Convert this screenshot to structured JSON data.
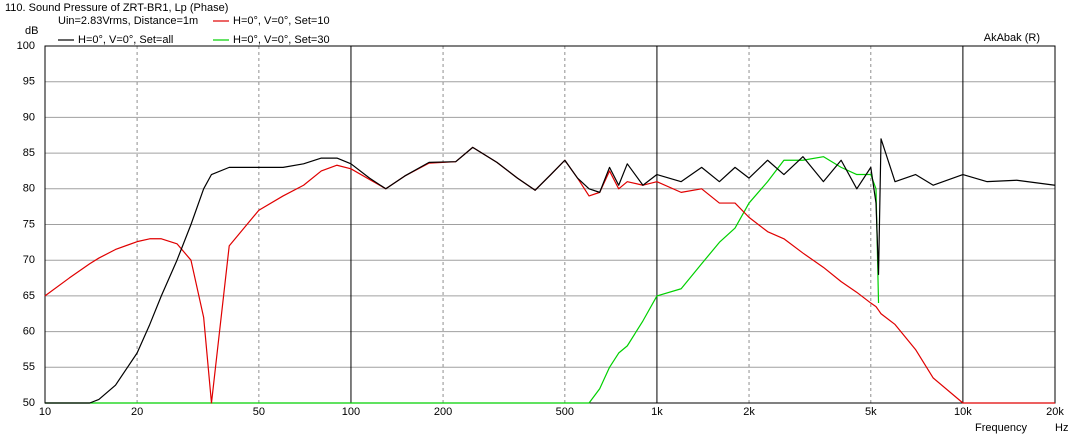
{
  "chart_data": {
    "type": "line",
    "title": "110. Sound Pressure of ZRT-BR1, Lp (Phase)",
    "subtitle": "Uin=2.83Vrms, Distance=1m",
    "annotation": "AkAbak (R)",
    "xlabel": "Frequency",
    "xunit": "Hz",
    "ylabel": "dB",
    "xscale": "log",
    "grid": true,
    "legend": "top-left",
    "xlim": [
      10,
      20000
    ],
    "ylim": [
      50,
      100
    ],
    "xticks": [
      10,
      20,
      50,
      100,
      200,
      500,
      {
        "value": 1000,
        "label": "1k"
      },
      {
        "value": 2000,
        "label": "2k"
      },
      {
        "value": 5000,
        "label": "5k"
      },
      {
        "value": 10000,
        "label": "10k"
      },
      {
        "value": 20000,
        "label": "20k"
      }
    ],
    "yticks": [
      50,
      55,
      60,
      65,
      70,
      75,
      80,
      85,
      90,
      95,
      100
    ],
    "x": [
      10,
      12,
      14,
      15,
      17,
      20,
      22,
      24,
      27,
      30,
      33,
      35,
      40,
      50,
      60,
      70,
      80,
      90,
      100,
      115,
      130,
      150,
      180,
      220,
      250,
      300,
      350,
      400,
      450,
      500,
      550,
      600,
      650,
      700,
      750,
      800,
      900,
      1000,
      1200,
      1400,
      1600,
      1800,
      2000,
      2300,
      2600,
      3000,
      3500,
      4000,
      4500,
      5000,
      5200,
      5300,
      5400,
      6000,
      7000,
      8000,
      10000,
      12000,
      15000,
      20000
    ],
    "series": [
      {
        "name": "H=0°, V=0°, Set=all",
        "color": "#000000",
        "values": [
          50,
          50,
          50,
          50.5,
          52.5,
          57,
          61,
          65,
          70,
          75,
          80,
          82,
          83,
          83,
          83,
          83.5,
          84.3,
          84.3,
          83.5,
          81.5,
          80,
          81.8,
          83.7,
          83.8,
          85.8,
          83.7,
          81.5,
          79.8,
          82,
          84,
          81.5,
          80,
          79.5,
          83,
          80.5,
          83.5,
          80.5,
          82,
          81,
          83,
          81,
          83,
          81.5,
          84,
          82,
          84.5,
          81,
          84,
          80,
          83,
          78,
          68,
          87,
          81,
          82,
          80.5,
          82,
          81,
          81.2,
          80.5
        ]
      },
      {
        "name": "H=0°, V=0°, Set=10",
        "color": "#e00000",
        "values": [
          65,
          67.5,
          69.5,
          70.3,
          71.5,
          72.6,
          73,
          73,
          72.3,
          70,
          62,
          50,
          72,
          77,
          79,
          80.5,
          82.5,
          83.3,
          82.8,
          81.3,
          80,
          81.8,
          83.6,
          83.8,
          85.8,
          83.7,
          81.5,
          79.8,
          82,
          84,
          81.5,
          79,
          79.5,
          82.5,
          80,
          81,
          80.5,
          81,
          79.5,
          80,
          78,
          78,
          76,
          74,
          73,
          71,
          69,
          67,
          65.5,
          64,
          63.5,
          63,
          62.5,
          61,
          57.5,
          53.5,
          50,
          50,
          50,
          50
        ]
      },
      {
        "name": "H=0°, V=0°, Set=30",
        "color": "#00d000",
        "values": [
          50,
          50,
          50,
          50,
          50,
          50,
          50,
          50,
          50,
          50,
          50,
          50,
          50,
          50,
          50,
          50,
          50,
          50,
          50,
          50,
          50,
          50,
          50,
          50,
          50,
          50,
          50,
          50,
          50,
          50,
          50,
          50,
          52,
          55,
          57,
          58,
          61.5,
          65,
          66,
          69.5,
          72.5,
          74.5,
          78,
          81,
          84,
          84,
          84.5,
          83,
          82,
          82,
          80,
          64,
          null,
          null,
          null,
          null,
          null,
          null,
          null,
          null
        ]
      }
    ]
  }
}
